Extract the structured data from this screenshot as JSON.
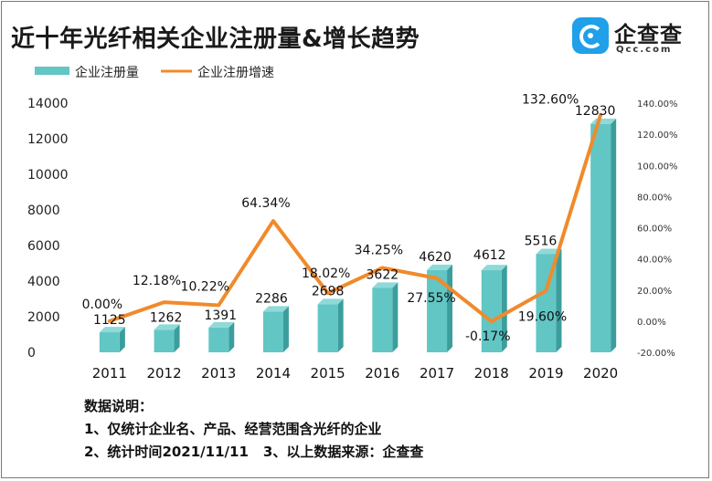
{
  "header": {
    "title": "近十年光纤相关企业注册量&增长趋势",
    "logo_name": "企查查",
    "logo_sub": "Qcc.com"
  },
  "chart_data": {
    "type": "bar",
    "categories": [
      "2011",
      "2012",
      "2013",
      "2014",
      "2015",
      "2016",
      "2017",
      "2018",
      "2019",
      "2020"
    ],
    "series": [
      {
        "name": "企业注册量",
        "kind": "bar",
        "axis": "left",
        "color": "#62c6c4",
        "values": [
          1125,
          1262,
          1391,
          2286,
          2698,
          3622,
          4620,
          4612,
          5516,
          12830
        ],
        "labels": [
          "1125",
          "1262",
          "1391",
          "2286",
          "2698",
          "3622",
          "4620",
          "4612",
          "5516",
          "12830"
        ]
      },
      {
        "name": "企业注册增速",
        "kind": "line",
        "axis": "right",
        "color": "#f08a2b",
        "values": [
          0.0,
          12.18,
          10.22,
          64.34,
          18.02,
          34.25,
          27.55,
          -0.17,
          19.6,
          132.6
        ],
        "labels": [
          "0.00%",
          "12.18%",
          "10.22%",
          "64.34%",
          "18.02%",
          "34.25%",
          "27.55%",
          "-0.17%",
          "19.60%",
          "132.60%"
        ]
      }
    ],
    "y_left": {
      "lim": [
        0,
        14000
      ],
      "ticks": [
        "0",
        "2000",
        "4000",
        "6000",
        "8000",
        "10000",
        "12000",
        "14000"
      ]
    },
    "y_right": {
      "lim": [
        -20,
        140
      ],
      "ticks": [
        "-20.00%",
        "0.00%",
        "20.00%",
        "40.00%",
        "60.00%",
        "80.00%",
        "100.00%",
        "120.00%",
        "140.00%"
      ]
    },
    "legend_position": "top-left",
    "grid": false
  },
  "notes": {
    "heading": "数据说明：",
    "line1": "1、仅统计企业名、产品、经营范围含光纤的企业",
    "line2a": "2、统计时间2021/11/11",
    "line2b": "3、以上数据来源：企查查"
  }
}
